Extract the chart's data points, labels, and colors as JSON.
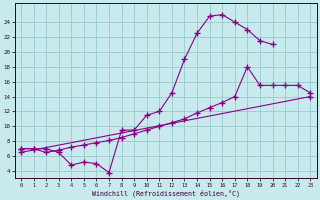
{
  "xlabel": "Windchill (Refroidissement éolien,°C)",
  "bg_color": "#c8eaec",
  "grid_color": "#96cccc",
  "line_color": "#880088",
  "spine_color": "#330033",
  "text_color": "#330033",
  "xlim_min": -0.5,
  "xlim_max": 23.5,
  "ylim_min": 3.0,
  "ylim_max": 26.5,
  "xticks": [
    0,
    1,
    2,
    3,
    4,
    5,
    6,
    7,
    8,
    9,
    10,
    11,
    12,
    13,
    14,
    15,
    16,
    17,
    18,
    19,
    20,
    21,
    22,
    23
  ],
  "yticks": [
    4,
    6,
    8,
    10,
    12,
    14,
    16,
    18,
    20,
    22,
    24
  ],
  "curve1_x": [
    0,
    1,
    2,
    3,
    4,
    5,
    6,
    7,
    8,
    9,
    10,
    11,
    12,
    13,
    14,
    15,
    16,
    17,
    18,
    19,
    20
  ],
  "curve1_y": [
    7.0,
    7.0,
    7.0,
    6.5,
    4.8,
    5.2,
    5.0,
    3.8,
    9.5,
    9.5,
    11.5,
    12.0,
    14.5,
    19.0,
    22.5,
    24.8,
    25.0,
    24.0,
    23.0,
    21.5,
    21.0
  ],
  "curve2_x": [
    0,
    1,
    2,
    3,
    4,
    5,
    6,
    7,
    8,
    9,
    10,
    11,
    12,
    13,
    14,
    15,
    16,
    17,
    18,
    19,
    20,
    21,
    22,
    23
  ],
  "curve2_y": [
    7.0,
    7.0,
    6.5,
    6.8,
    7.2,
    7.5,
    7.8,
    8.1,
    8.5,
    9.0,
    9.5,
    10.0,
    10.5,
    11.0,
    11.8,
    12.5,
    13.2,
    14.0,
    18.0,
    15.5,
    15.5,
    15.5,
    15.5,
    14.5
  ],
  "curve3_x": [
    0,
    23
  ],
  "curve3_y": [
    6.5,
    14.0
  ]
}
